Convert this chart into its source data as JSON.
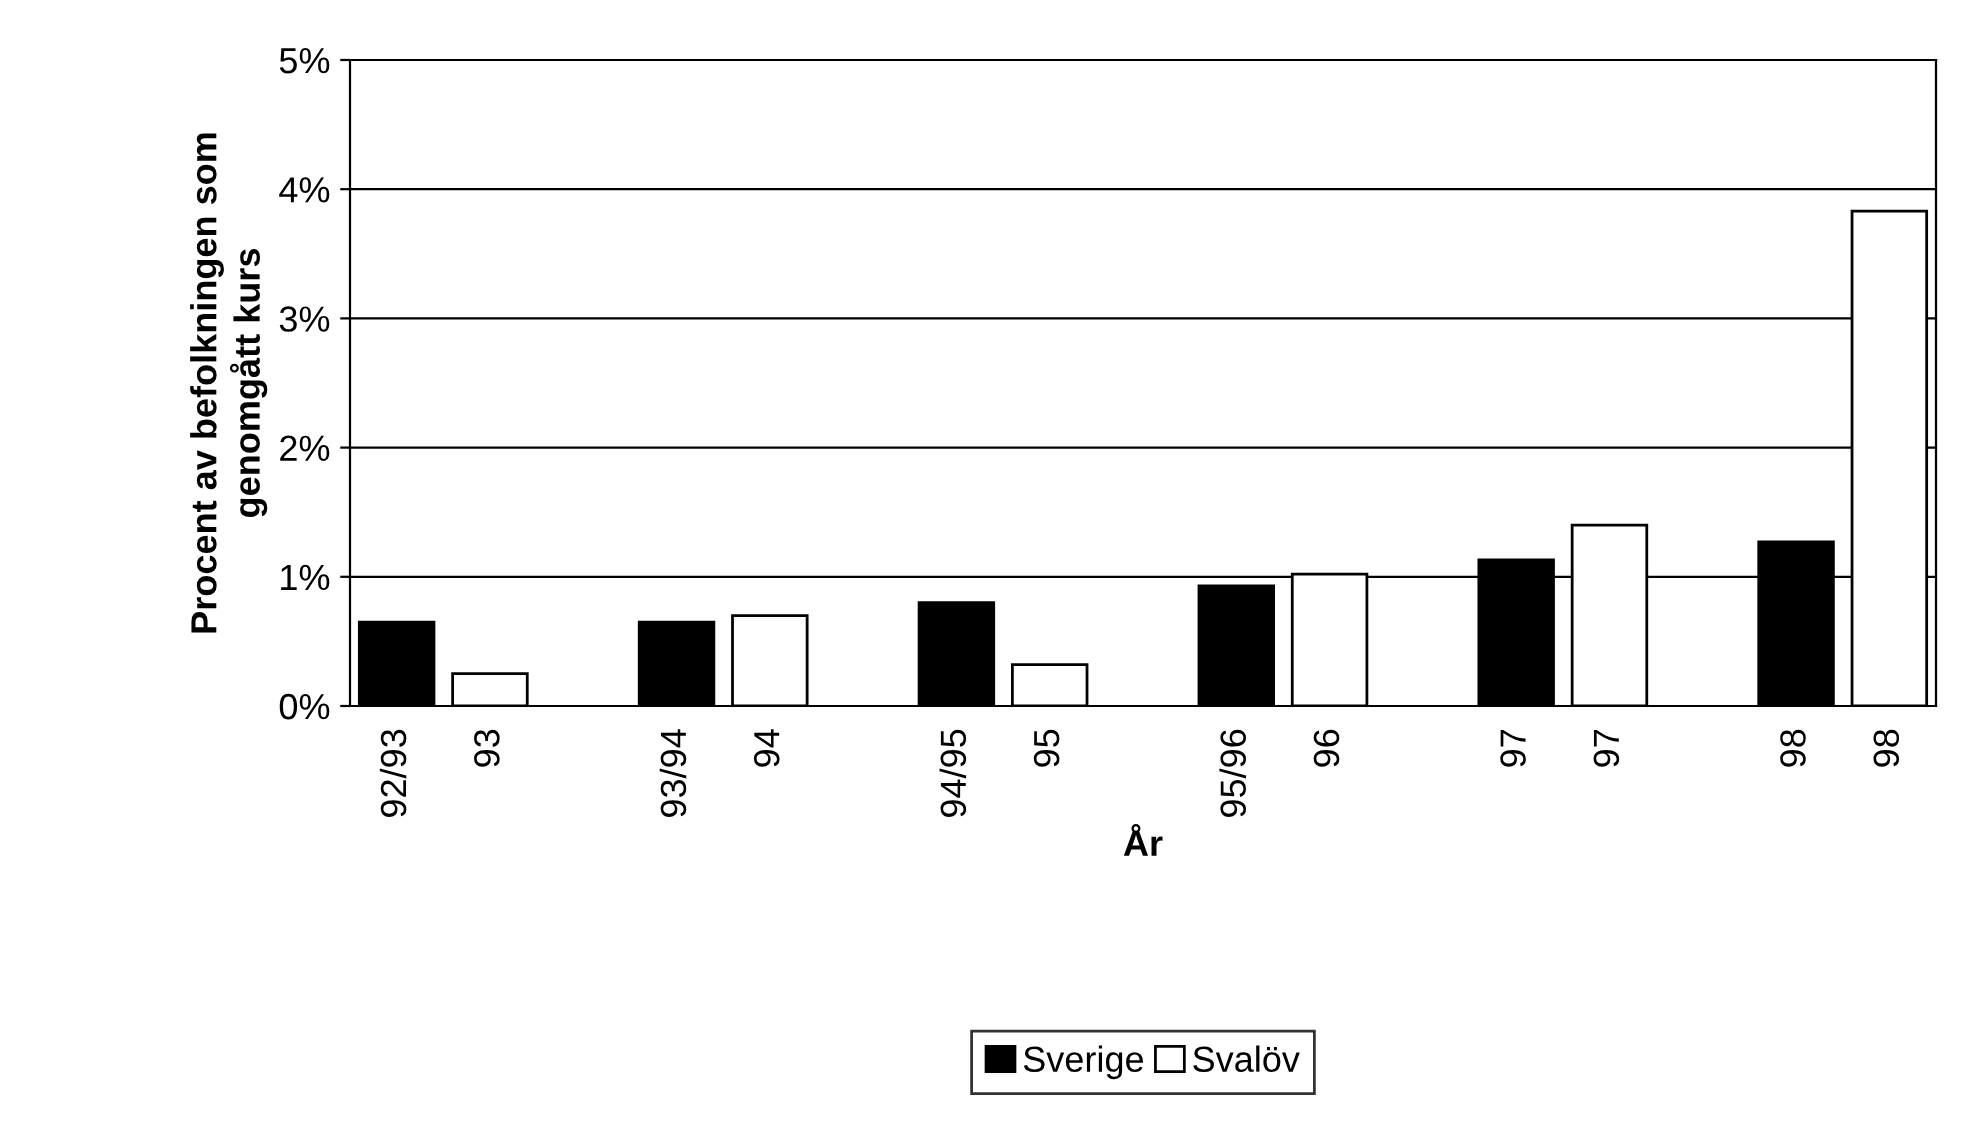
{
  "chart_data": {
    "type": "bar",
    "xlabel": "År",
    "ylabel": "Procent av befolkningen som\ngenomgått kurs",
    "categories": [
      "92/93",
      "93",
      null,
      "93/94",
      "94",
      null,
      "94/95",
      "95",
      null,
      "95/96",
      "96",
      null,
      "97",
      "97",
      null,
      "98",
      "98"
    ],
    "series": [
      {
        "name": "Sverige",
        "color": "#000000",
        "values": [
          0.65,
          null,
          null,
          0.65,
          null,
          null,
          0.8,
          null,
          null,
          0.93,
          null,
          null,
          1.13,
          null,
          null,
          1.27,
          null
        ]
      },
      {
        "name": "Svalöv",
        "color": "#ffffff",
        "values": [
          null,
          0.25,
          null,
          null,
          0.7,
          null,
          null,
          0.32,
          null,
          null,
          1.02,
          null,
          null,
          1.4,
          null,
          null,
          3.83
        ]
      }
    ],
    "ylim": [
      0,
      5
    ],
    "yticks": [
      {
        "value": 0,
        "label": "0%"
      },
      {
        "value": 1,
        "label": "1%"
      },
      {
        "value": 2,
        "label": "2%"
      },
      {
        "value": 3,
        "label": "3%"
      },
      {
        "value": 4,
        "label": "4%"
      },
      {
        "value": 5,
        "label": "5%"
      }
    ],
    "grid": "y",
    "legend": "bottom"
  }
}
